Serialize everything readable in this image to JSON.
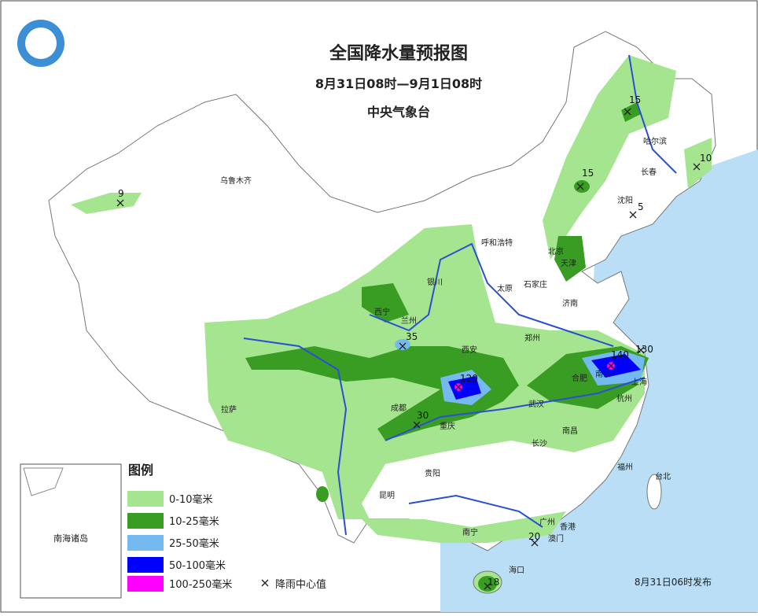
{
  "header": {
    "title": "全国降水量预报图",
    "period": "8月31日08时—9月1日08时",
    "issuer": "中央气象台"
  },
  "cities": [
    "乌鲁木齐",
    "呼和浩特",
    "哈尔滨",
    "长春",
    "沈阳",
    "北京",
    "天津",
    "石家庄",
    "太原",
    "银川",
    "西宁",
    "兰州",
    "济南",
    "郑州",
    "西安",
    "合肥",
    "南京",
    "上海",
    "杭州",
    "武汉",
    "成都",
    "重庆",
    "拉萨",
    "南昌",
    "长沙",
    "贵阳",
    "昆明",
    "福州",
    "台北",
    "南宁",
    "广州",
    "香港",
    "澳门",
    "海口"
  ],
  "rain_centers": [
    15,
    10,
    15,
    5,
    9,
    35,
    120,
    140,
    130,
    30,
    20,
    18
  ],
  "legend": {
    "title": "图例",
    "items": [
      "0-10毫米",
      "10-25毫米",
      "25-50毫米",
      "50-100毫米",
      "100-250毫米"
    ],
    "center_mark": "降雨中心值"
  },
  "inset": "南海诸岛",
  "issued": "8月31日06时发布"
}
